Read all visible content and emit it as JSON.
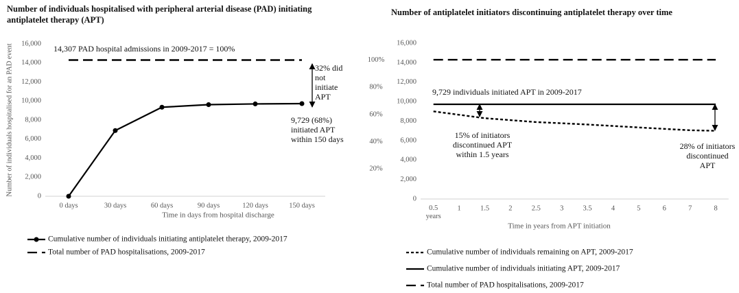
{
  "chart_data": [
    {
      "type": "line",
      "title": "Number of individuals hospitalised with peripheral arterial disease (PAD) initiating antiplatelet therapy (APT)",
      "y_label": "Number of individuals hospitalised for an PAD event",
      "x_label": "Time in days from hospital discharge",
      "categories": [
        "0 days",
        "30 days",
        "60 days",
        "90 days",
        "120 days",
        "150 days"
      ],
      "series": [
        {
          "name": "Cumulative number of individuals initiating antiplatelet therapy, 2009-2017",
          "color": "#000000",
          "style": "solid",
          "marker": "circle",
          "values": [
            0,
            6900,
            9350,
            9620,
            9700,
            9729
          ]
        },
        {
          "name": "Total number of PAD hospitalisations, 2009-2017",
          "color": "#000000",
          "style": "dashed",
          "values": [
            14307,
            14307,
            14307,
            14307,
            14307,
            14307
          ]
        }
      ],
      "ylim": [
        0,
        16000
      ],
      "yticks": [
        0,
        {
          "value": 2000,
          "label": "2,000"
        },
        {
          "value": 4000,
          "label": "4,000"
        },
        {
          "value": 6000,
          "label": "6,000"
        },
        {
          "value": 8000,
          "label": "8,000"
        },
        {
          "value": 10000,
          "label": "10,000"
        },
        {
          "value": 12000,
          "label": "12,000"
        },
        {
          "value": 14000,
          "label": "14,000"
        },
        {
          "value": 16000,
          "label": "16,000"
        }
      ],
      "y2lim": [
        0,
        111.83
      ],
      "y2ticks": [
        {
          "value": 20,
          "label": "20%"
        },
        {
          "value": 40,
          "label": "40%"
        },
        {
          "value": 60,
          "label": "60%"
        },
        {
          "value": 80,
          "label": "80%"
        },
        {
          "value": 100,
          "label": "100%"
        }
      ],
      "annotations": [
        "14,307 PAD hospital admissions in 2009-2017 = 100%",
        "32% did not initiate APT",
        "9,729 (68%) initiated APT within 150 days"
      ]
    },
    {
      "type": "line",
      "title": "Number of antiplatelet initiators discontinuing antiplatelet therapy over time",
      "x_label": "Time in years from APT initiation",
      "categories": [
        "0.5 years",
        "1",
        "1.5",
        "2",
        "2.5",
        "3",
        "3.5",
        "4",
        "5",
        "6",
        "7",
        "8"
      ],
      "series": [
        {
          "name": "Cumulative number of individuals remaining on APT, 2009-2017",
          "color": "#000000",
          "style": "dotted",
          "values": [
            9000,
            8650,
            8300,
            8100,
            7900,
            7780,
            7650,
            7500,
            7350,
            7200,
            7060,
            7005
          ]
        },
        {
          "name": "Cumulative number of individuals initiating APT, 2009-2017",
          "color": "#000000",
          "style": "solid",
          "values": [
            9729,
            9729,
            9729,
            9729,
            9729,
            9729,
            9729,
            9729,
            9729,
            9729,
            9729,
            9729
          ]
        },
        {
          "name": "Total number of PAD hospitalisations, 2009-2017",
          "color": "#000000",
          "style": "dashed",
          "values": [
            14307,
            14307,
            14307,
            14307,
            14307,
            14307,
            14307,
            14307,
            14307,
            14307,
            14307,
            14307
          ]
        }
      ],
      "ylim": [
        0,
        16000
      ],
      "yticks": [
        0,
        {
          "value": 2000,
          "label": "2,000"
        },
        {
          "value": 4000,
          "label": "4,000"
        },
        {
          "value": 6000,
          "label": "6,000"
        },
        {
          "value": 8000,
          "label": "8,000"
        },
        {
          "value": 10000,
          "label": "10,000"
        },
        {
          "value": 12000,
          "label": "12,000"
        },
        {
          "value": 14000,
          "label": "14,000"
        },
        {
          "value": 16000,
          "label": "16,000"
        }
      ],
      "annotations": [
        "9,729 individuals initiated APT in 2009-2017",
        "15% of initiators discontinued APT within 1.5 years",
        "28% of initiators discontinued APT"
      ]
    }
  ]
}
